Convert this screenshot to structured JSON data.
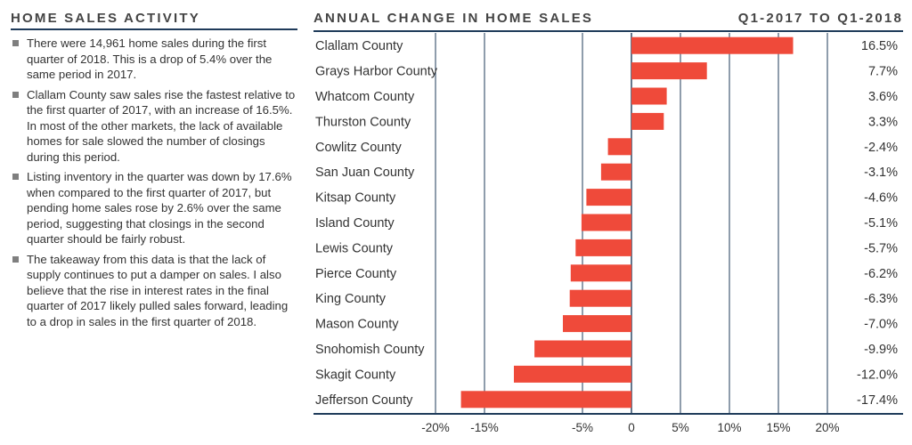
{
  "left_panel": {
    "heading": "HOME SALES ACTIVITY",
    "bullets": [
      "There were 14,961 home sales during the first quarter of 2018. This is a drop of 5.4% over the same period in 2017.",
      "Clallam County saw sales rise the fastest relative to the first quarter of 2017, with an increase of 16.5%. In most of the other markets, the lack of available homes for sale slowed the number of closings during this period.",
      "Listing inventory in the quarter was down by 17.6% when compared to the first quarter of 2017, but pending home sales rose by 2.6% over the same period, suggesting that closings in the second quarter should be fairly robust.",
      "The takeaway from this data is that the lack of supply continues to put a damper on sales. I also believe that the rise in interest rates in the final quarter of 2017 likely pulled sales forward, leading to a drop in sales in the first quarter of 2018."
    ]
  },
  "chart_header": {
    "title": "ANNUAL CHANGE IN HOME SALES",
    "period": "Q1-2017 TO Q1-2018"
  },
  "chart_data": {
    "type": "bar",
    "orientation": "horizontal",
    "title": "ANNUAL CHANGE IN HOME SALES",
    "subtitle": "Q1-2017 TO Q1-2018",
    "categories": [
      "Clallam County",
      "Grays Harbor County",
      "Whatcom County",
      "Thurston County",
      "Cowlitz County",
      "San Juan County",
      "Kitsap County",
      "Island County",
      "Lewis County",
      "Pierce County",
      "King County",
      "Mason County",
      "Snohomish County",
      "Skagit County",
      "Jefferson County"
    ],
    "values": [
      16.5,
      7.7,
      3.6,
      3.3,
      -2.4,
      -3.1,
      -4.6,
      -5.1,
      -5.7,
      -6.2,
      -6.3,
      -7.0,
      -9.9,
      -12.0,
      -17.4
    ],
    "value_labels": [
      "16.5%",
      "7.7%",
      "3.6%",
      "3.3%",
      "-2.4%",
      "-3.1%",
      "-4.6%",
      "-5.1%",
      "-5.7%",
      "-6.2%",
      "-6.3%",
      "-7.0%",
      "-9.9%",
      "-12.0%",
      "-17.4%"
    ],
    "x_ticks": [
      -20,
      -15,
      -5,
      0,
      5,
      10,
      15,
      20
    ],
    "x_tick_labels": [
      "-20%",
      "-15%",
      "-5%",
      "0",
      "5%",
      "10%",
      "15%",
      "20%"
    ],
    "xlim": [
      -20,
      20
    ],
    "bar_color": "#ef4a3a",
    "grid_color": "#1f3b5a",
    "grid": true
  }
}
